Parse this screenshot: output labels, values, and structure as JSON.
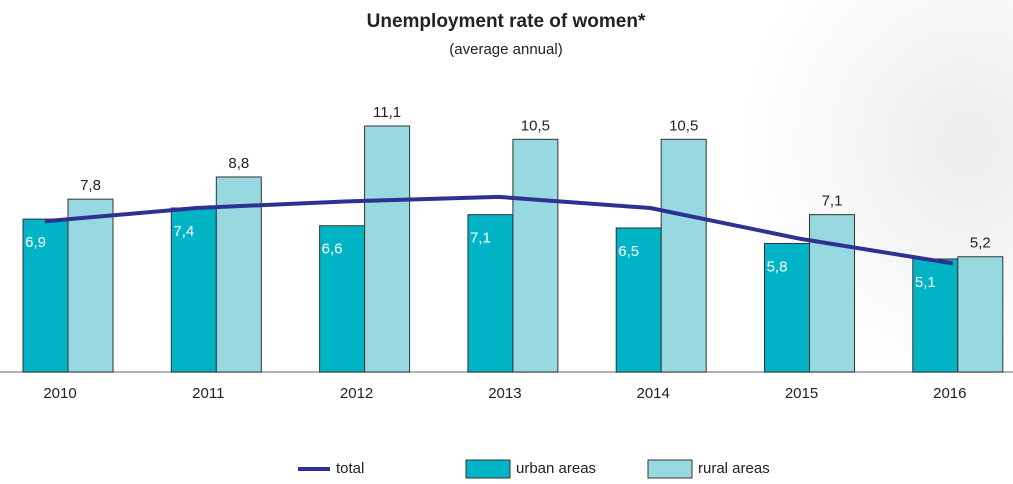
{
  "chart_data": {
    "type": "bar",
    "title": "Unemployment rate of women*",
    "subtitle": "(average annual)",
    "categories": [
      "2010",
      "2011",
      "2012",
      "2013",
      "2014",
      "2015",
      "2016"
    ],
    "series": [
      {
        "name": "total",
        "type": "line",
        "color": "#2e3192",
        "values": [
          6.8,
          7.4,
          7.7,
          7.9,
          7.4,
          6.0,
          4.9
        ]
      },
      {
        "name": "urban areas",
        "color": "#00b4c6",
        "values": [
          6.9,
          7.4,
          6.6,
          7.1,
          6.5,
          5.8,
          5.1
        ],
        "value_labels": [
          "6,9",
          "7,4",
          "6,6",
          "7,1",
          "6,5",
          "5,8",
          "5,1"
        ]
      },
      {
        "name": "rural areas",
        "color": "#98d8e1",
        "values": [
          7.8,
          8.8,
          11.1,
          10.5,
          10.5,
          7.1,
          5.2
        ],
        "value_labels": [
          "7,8",
          "8,8",
          "11,1",
          "10,5",
          "10,5",
          "7,1",
          "5,2"
        ]
      }
    ]
  }
}
